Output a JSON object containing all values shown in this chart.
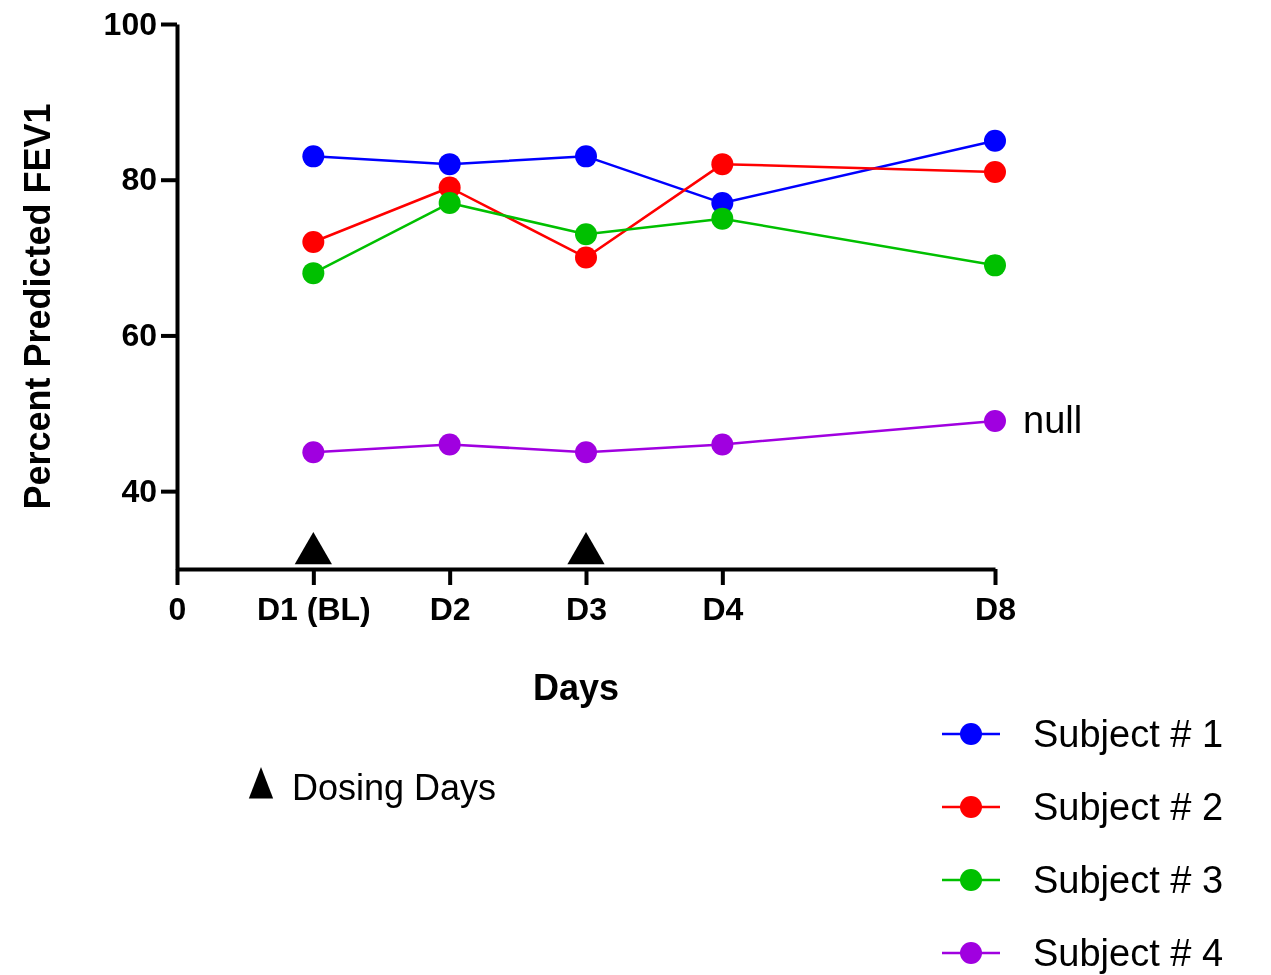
{
  "chart_data": {
    "type": "line",
    "xlabel": "Days",
    "ylabel": "Percent Predicted FEV1",
    "categories": [
      "0",
      "D1 (BL)",
      "D2",
      "D3",
      "D4",
      null,
      "D8"
    ],
    "ylim": [
      30,
      100
    ],
    "yticks": [
      40,
      60,
      80,
      100
    ],
    "grid": false,
    "legend": "bottom right",
    "marker": "circle",
    "line_style": "solid",
    "series": [
      {
        "name": "Subject # 1",
        "color": "#0000ff",
        "values": [
          null,
          83,
          82,
          83,
          77,
          null,
          85
        ]
      },
      {
        "name": "Subject # 2",
        "color": "#ff0000",
        "values": [
          null,
          72,
          79,
          70,
          82,
          null,
          81
        ]
      },
      {
        "name": "Subject # 3",
        "color": "#00c000",
        "values": [
          null,
          68,
          77,
          73,
          75,
          null,
          69
        ]
      },
      {
        "name": "Subject # 4",
        "color": "#a000e0",
        "values": [
          null,
          45,
          46,
          45,
          46,
          null,
          49
        ]
      },
      {
        "name": "Dosing Days",
        "type": "scatter",
        "marker": "triangle",
        "color": "#000000",
        "values": [
          null,
          32,
          null,
          32,
          null,
          null,
          null
        ]
      }
    ],
    "annotations": [
      {
        "text": "null",
        "x": "D8",
        "y": 49
      }
    ]
  }
}
